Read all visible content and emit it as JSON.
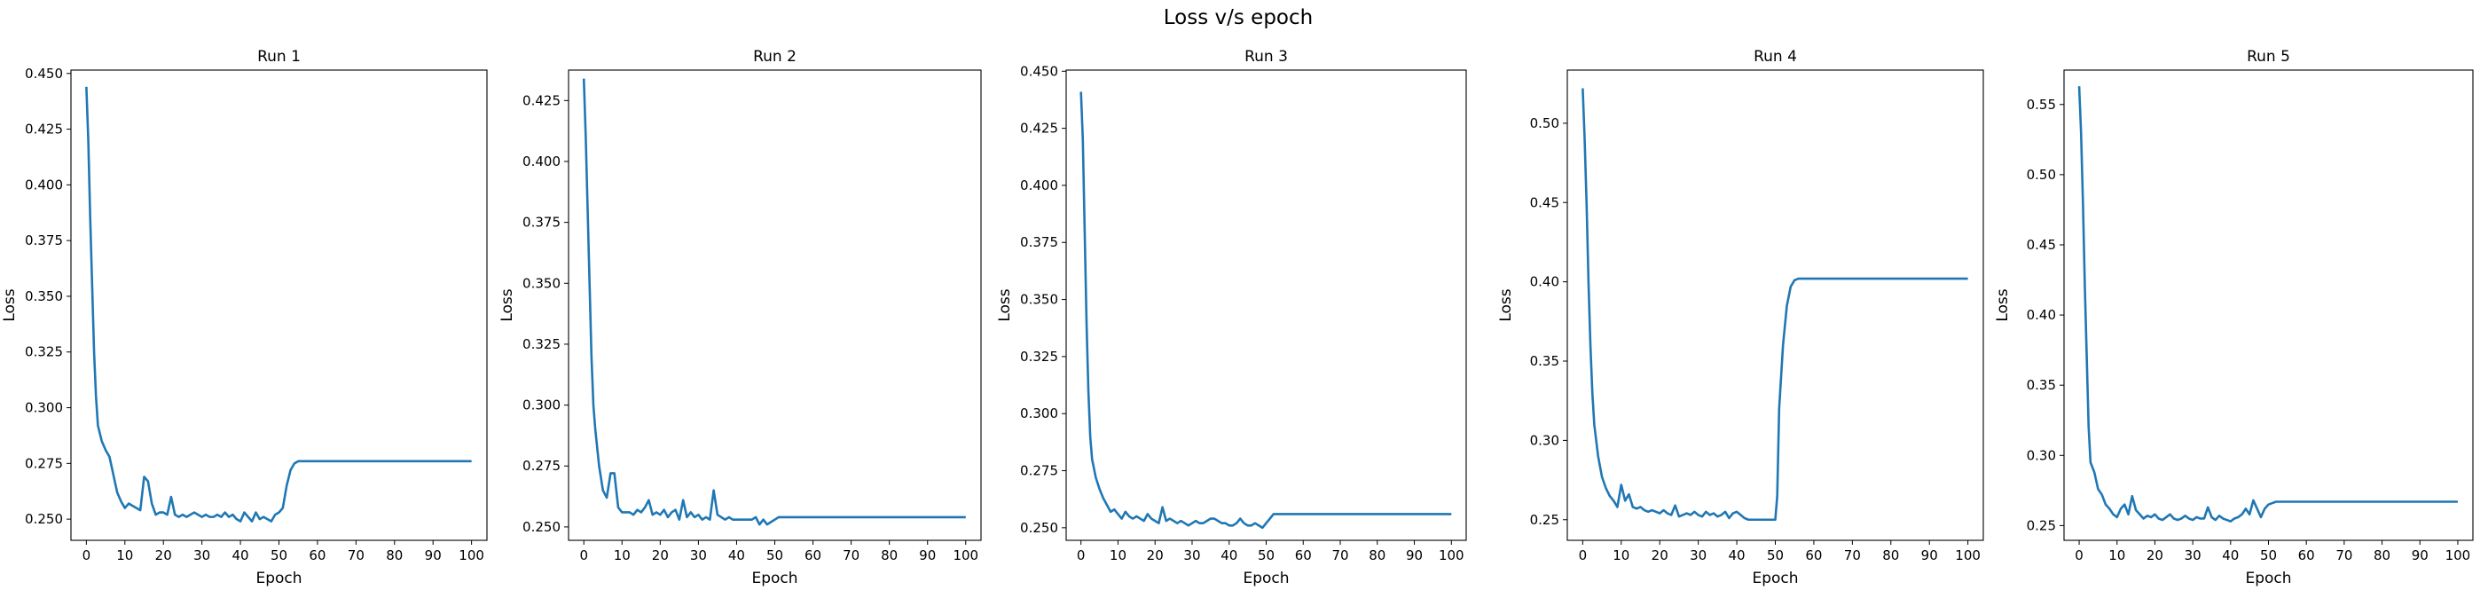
{
  "suptitle": "Loss v/s epoch",
  "chart_data": [
    {
      "type": "line",
      "title": "Run 1",
      "xlabel": "Epoch",
      "ylabel": "Loss",
      "xlim": [
        -4,
        104
      ],
      "ylim": [
        0.2405,
        0.4515
      ],
      "xticks": [
        0,
        10,
        20,
        30,
        40,
        50,
        60,
        70,
        80,
        90,
        100
      ],
      "yticks": [
        0.25,
        0.275,
        0.3,
        0.325,
        0.35,
        0.375,
        0.4,
        0.425,
        0.45
      ],
      "line_color": "#1f77b4",
      "x": [
        0,
        0.5,
        1,
        1.5,
        2,
        2.5,
        3,
        4,
        5,
        6,
        7,
        8,
        9,
        10,
        11,
        12,
        13,
        14,
        15,
        16,
        17,
        18,
        19,
        20,
        21,
        22,
        23,
        24,
        25,
        26,
        27,
        28,
        29,
        30,
        31,
        32,
        33,
        34,
        35,
        36,
        37,
        38,
        39,
        40,
        41,
        42,
        43,
        44,
        45,
        46,
        47,
        48,
        49,
        50,
        51,
        52,
        53,
        54,
        55,
        60,
        70,
        80,
        90,
        100
      ],
      "y": [
        0.444,
        0.42,
        0.385,
        0.355,
        0.325,
        0.305,
        0.292,
        0.285,
        0.281,
        0.278,
        0.27,
        0.262,
        0.258,
        0.255,
        0.257,
        0.256,
        0.255,
        0.254,
        0.269,
        0.267,
        0.257,
        0.252,
        0.253,
        0.253,
        0.252,
        0.26,
        0.252,
        0.251,
        0.252,
        0.251,
        0.252,
        0.253,
        0.252,
        0.251,
        0.252,
        0.251,
        0.251,
        0.252,
        0.251,
        0.253,
        0.251,
        0.252,
        0.25,
        0.249,
        0.253,
        0.251,
        0.249,
        0.253,
        0.25,
        0.251,
        0.25,
        0.249,
        0.252,
        0.253,
        0.255,
        0.265,
        0.272,
        0.275,
        0.276,
        0.276,
        0.276,
        0.276,
        0.276,
        0.276
      ]
    },
    {
      "type": "line",
      "title": "Run 2",
      "xlabel": "Epoch",
      "ylabel": "Loss",
      "xlim": [
        -4,
        104
      ],
      "ylim": [
        0.2445,
        0.4375
      ],
      "xticks": [
        0,
        10,
        20,
        30,
        40,
        50,
        60,
        70,
        80,
        90,
        100
      ],
      "yticks": [
        0.25,
        0.275,
        0.3,
        0.325,
        0.35,
        0.375,
        0.4,
        0.425
      ],
      "line_color": "#1f77b4",
      "x": [
        0,
        0.5,
        1,
        1.5,
        2,
        2.5,
        3,
        4,
        5,
        6,
        7,
        8,
        9,
        10,
        11,
        12,
        13,
        14,
        15,
        16,
        17,
        18,
        19,
        20,
        21,
        22,
        23,
        24,
        25,
        26,
        27,
        28,
        29,
        30,
        31,
        32,
        33,
        34,
        35,
        36,
        37,
        38,
        39,
        40,
        41,
        42,
        43,
        44,
        45,
        46,
        47,
        48,
        49,
        50,
        51,
        52,
        53,
        55,
        60,
        70,
        80,
        90,
        100
      ],
      "y": [
        0.434,
        0.41,
        0.38,
        0.35,
        0.32,
        0.3,
        0.29,
        0.275,
        0.265,
        0.262,
        0.272,
        0.272,
        0.258,
        0.256,
        0.256,
        0.256,
        0.255,
        0.257,
        0.256,
        0.258,
        0.261,
        0.255,
        0.256,
        0.255,
        0.257,
        0.254,
        0.256,
        0.257,
        0.253,
        0.261,
        0.254,
        0.256,
        0.254,
        0.255,
        0.253,
        0.254,
        0.253,
        0.265,
        0.255,
        0.254,
        0.253,
        0.254,
        0.253,
        0.253,
        0.253,
        0.253,
        0.253,
        0.253,
        0.254,
        0.251,
        0.253,
        0.251,
        0.252,
        0.253,
        0.254,
        0.254,
        0.254,
        0.254,
        0.254,
        0.254,
        0.254,
        0.254,
        0.254
      ]
    },
    {
      "type": "line",
      "title": "Run 3",
      "xlabel": "Epoch",
      "ylabel": "Loss",
      "xlim": [
        -4,
        104
      ],
      "ylim": [
        0.2445,
        0.4505
      ],
      "xticks": [
        0,
        10,
        20,
        30,
        40,
        50,
        60,
        70,
        80,
        90,
        100
      ],
      "yticks": [
        0.25,
        0.275,
        0.3,
        0.325,
        0.35,
        0.375,
        0.4,
        0.425,
        0.45
      ],
      "line_color": "#1f77b4",
      "x": [
        0,
        0.5,
        1,
        1.5,
        2,
        2.5,
        3,
        4,
        5,
        6,
        7,
        8,
        9,
        10,
        11,
        12,
        13,
        14,
        15,
        16,
        17,
        18,
        19,
        20,
        21,
        22,
        23,
        24,
        25,
        26,
        27,
        28,
        29,
        30,
        31,
        32,
        33,
        34,
        35,
        36,
        37,
        38,
        39,
        40,
        41,
        42,
        43,
        44,
        45,
        46,
        47,
        48,
        49,
        50,
        51,
        52,
        53,
        55,
        60,
        70,
        80,
        90,
        100
      ],
      "y": [
        0.441,
        0.42,
        0.38,
        0.34,
        0.31,
        0.29,
        0.28,
        0.272,
        0.267,
        0.263,
        0.26,
        0.257,
        0.258,
        0.256,
        0.254,
        0.257,
        0.255,
        0.254,
        0.255,
        0.254,
        0.253,
        0.256,
        0.254,
        0.253,
        0.252,
        0.259,
        0.253,
        0.254,
        0.253,
        0.252,
        0.253,
        0.252,
        0.251,
        0.252,
        0.253,
        0.252,
        0.252,
        0.253,
        0.254,
        0.254,
        0.253,
        0.252,
        0.252,
        0.251,
        0.251,
        0.252,
        0.254,
        0.252,
        0.251,
        0.251,
        0.252,
        0.251,
        0.25,
        0.252,
        0.254,
        0.256,
        0.256,
        0.256,
        0.256,
        0.256,
        0.256,
        0.256,
        0.256
      ]
    },
    {
      "type": "line",
      "title": "Run 4",
      "xlabel": "Epoch",
      "ylabel": "Loss",
      "xlim": [
        -4,
        104
      ],
      "ylim": [
        0.237,
        0.5335
      ],
      "xticks": [
        0,
        10,
        20,
        30,
        40,
        50,
        60,
        70,
        80,
        90,
        100
      ],
      "yticks": [
        0.25,
        0.3,
        0.35,
        0.4,
        0.45,
        0.5
      ],
      "line_color": "#1f77b4",
      "x": [
        0,
        0.5,
        1,
        1.5,
        2,
        2.5,
        3,
        4,
        5,
        6,
        7,
        8,
        9,
        10,
        11,
        12,
        13,
        14,
        15,
        16,
        17,
        18,
        19,
        20,
        21,
        22,
        23,
        24,
        25,
        26,
        27,
        28,
        29,
        30,
        31,
        32,
        33,
        34,
        35,
        36,
        37,
        38,
        39,
        40,
        41,
        42,
        43,
        44,
        45,
        46,
        47,
        48,
        49,
        50,
        50.5,
        51,
        52,
        53,
        54,
        55,
        56,
        60,
        70,
        80,
        90,
        100
      ],
      "y": [
        0.522,
        0.49,
        0.45,
        0.4,
        0.36,
        0.33,
        0.31,
        0.29,
        0.277,
        0.27,
        0.265,
        0.262,
        0.258,
        0.272,
        0.262,
        0.266,
        0.258,
        0.257,
        0.258,
        0.256,
        0.255,
        0.256,
        0.255,
        0.254,
        0.256,
        0.254,
        0.253,
        0.259,
        0.252,
        0.253,
        0.254,
        0.253,
        0.255,
        0.253,
        0.252,
        0.255,
        0.253,
        0.254,
        0.252,
        0.253,
        0.255,
        0.251,
        0.254,
        0.255,
        0.253,
        0.251,
        0.25,
        0.25,
        0.25,
        0.25,
        0.25,
        0.25,
        0.25,
        0.25,
        0.265,
        0.32,
        0.36,
        0.385,
        0.397,
        0.401,
        0.402,
        0.402,
        0.402,
        0.402,
        0.402,
        0.402
      ]
    },
    {
      "type": "line",
      "title": "Run 5",
      "xlabel": "Epoch",
      "ylabel": "Loss",
      "xlim": [
        -4,
        104
      ],
      "ylim": [
        0.2395,
        0.5745
      ],
      "xticks": [
        0,
        10,
        20,
        30,
        40,
        50,
        60,
        70,
        80,
        90,
        100
      ],
      "yticks": [
        0.25,
        0.3,
        0.35,
        0.4,
        0.45,
        0.5,
        0.55
      ],
      "line_color": "#1f77b4",
      "x": [
        0,
        0.5,
        1,
        1.5,
        2,
        2.5,
        3,
        4,
        5,
        6,
        7,
        8,
        9,
        10,
        11,
        12,
        13,
        14,
        15,
        16,
        17,
        18,
        19,
        20,
        21,
        22,
        23,
        24,
        25,
        26,
        27,
        28,
        29,
        30,
        31,
        32,
        33,
        34,
        35,
        36,
        37,
        38,
        39,
        40,
        41,
        42,
        43,
        44,
        45,
        46,
        47,
        48,
        49,
        50,
        51,
        52,
        53,
        55,
        60,
        70,
        80,
        90,
        100
      ],
      "y": [
        0.563,
        0.53,
        0.48,
        0.42,
        0.37,
        0.32,
        0.295,
        0.288,
        0.276,
        0.272,
        0.265,
        0.262,
        0.258,
        0.256,
        0.262,
        0.265,
        0.258,
        0.271,
        0.261,
        0.258,
        0.255,
        0.257,
        0.256,
        0.258,
        0.255,
        0.254,
        0.256,
        0.258,
        0.255,
        0.254,
        0.255,
        0.257,
        0.255,
        0.254,
        0.256,
        0.255,
        0.255,
        0.263,
        0.256,
        0.254,
        0.257,
        0.255,
        0.254,
        0.253,
        0.255,
        0.256,
        0.258,
        0.262,
        0.258,
        0.268,
        0.262,
        0.256,
        0.262,
        0.265,
        0.266,
        0.267,
        0.267,
        0.267,
        0.267,
        0.267,
        0.267,
        0.267,
        0.267
      ]
    }
  ]
}
